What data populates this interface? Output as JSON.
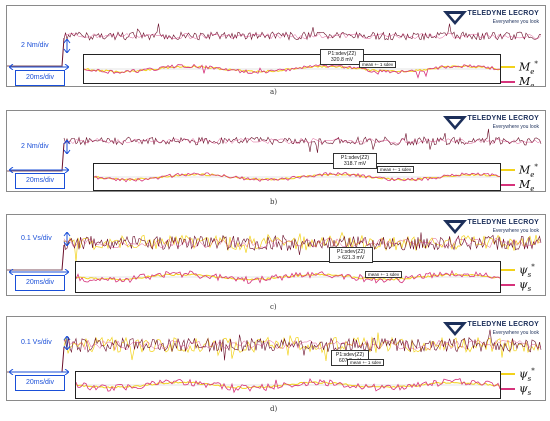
{
  "colors": {
    "trace_ref": "#f2d21b",
    "trace_meas": "#d6337b",
    "trace_main": "#6b0f2a",
    "scale": "#1a4fd8",
    "brand": "#1c2f5a"
  },
  "logo": {
    "brand": "TELEDYNE LECROY",
    "tagline": "Everywhere you look"
  },
  "chart_data": [
    {
      "type": "line",
      "panel_label": "a)",
      "y_scale": "2 Nm/div",
      "x_scale": "20ms/div",
      "measure_title": "P1:sdev(Z2)",
      "measure_value": "320.8 mV",
      "mean_label": "mean +- 1 sdev",
      "legend": [
        "M_e*",
        "M_e"
      ],
      "legend_base": "M",
      "legend_sub": "e"
    },
    {
      "type": "line",
      "panel_label": "b)",
      "y_scale": "2 Nm/div",
      "x_scale": "20ms/div",
      "measure_title": "P1:sdev(Z2)",
      "measure_value": "318.7 mV",
      "mean_label": "mean +- 1 sdev",
      "legend": [
        "M_e*",
        "M_e"
      ],
      "legend_base": "M",
      "legend_sub": "e"
    },
    {
      "type": "line",
      "panel_label": "c)",
      "y_scale": "0.1 Vs/div",
      "x_scale": "20ms/div",
      "measure_title": "P1:sdev(Z2)",
      "measure_value": "> 621.3 mV",
      "mean_label": "mean +- 1 sdev",
      "legend": [
        "ψ_s*",
        "ψ_s"
      ],
      "legend_base": "ψ",
      "legend_sub": "s"
    },
    {
      "type": "line",
      "panel_label": "d)",
      "y_scale": "0.1 Vs/div",
      "x_scale": "20ms/div",
      "measure_title": "P1:sdev(Z2)",
      "measure_value": "607.3 mV",
      "mean_label": "mean +- 1 sdev",
      "legend": [
        "ψ_s*",
        "ψ_s"
      ],
      "legend_base": "ψ",
      "legend_sub": "s"
    }
  ]
}
